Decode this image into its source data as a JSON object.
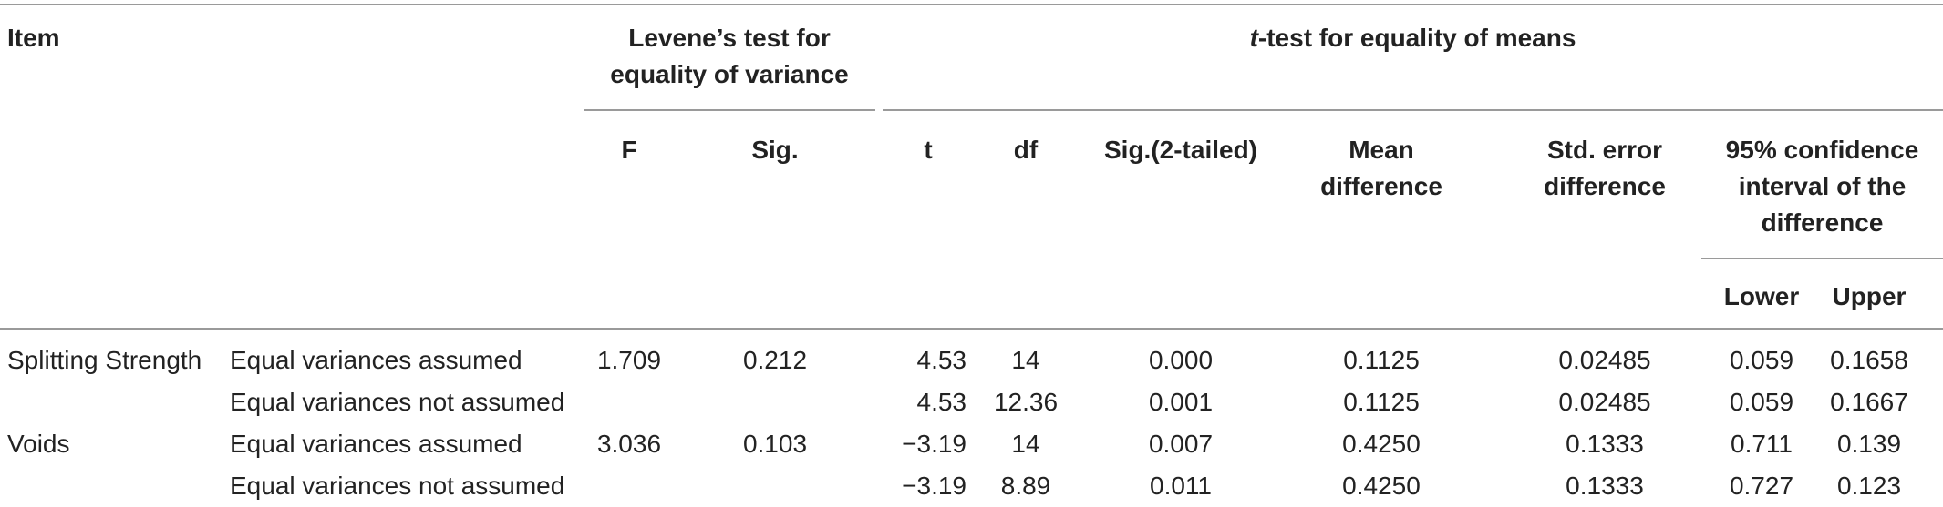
{
  "header": {
    "item": "Item",
    "levene_line1": "Levene’s test for",
    "levene_line2": "equality of variance",
    "ttest_italic": "t",
    "ttest_rest": "-test for equality of means",
    "f": "F",
    "sig": "Sig.",
    "t": "t",
    "df": "df",
    "sig2": "Sig.(2-tailed)",
    "mean_line1": "Mean",
    "mean_line2": "difference",
    "stderr_line1": "Std. error",
    "stderr_line2": "difference",
    "ci_line1": "95% confidence",
    "ci_line2": "interval of the",
    "ci_line3": "difference",
    "lower": "Lower",
    "upper": "Upper"
  },
  "rows": [
    {
      "item": "Splitting Strength",
      "assumption": "Equal variances assumed",
      "f": "1.709",
      "sig": "0.212",
      "t": "4.53",
      "df": "14",
      "sig2": "0.000",
      "mean": "0.1125",
      "stderr": "0.02485",
      "lower": "0.059",
      "upper": "0.1658"
    },
    {
      "item": "",
      "assumption": "Equal variances not assumed",
      "f": "",
      "sig": "",
      "t": "4.53",
      "df": "12.36",
      "sig2": "0.001",
      "mean": "0.1125",
      "stderr": "0.02485",
      "lower": "0.059",
      "upper": "0.1667"
    },
    {
      "item": "Voids",
      "assumption": "Equal variances assumed",
      "f": "3.036",
      "sig": "0.103",
      "t": "−3.19",
      "df": "14",
      "sig2": "0.007",
      "mean": "0.4250",
      "stderr": "0.1333",
      "lower": "0.711",
      "upper": "0.139"
    },
    {
      "item": "",
      "assumption": "Equal variances not assumed",
      "f": "",
      "sig": "",
      "t": "−3.19",
      "df": "8.89",
      "sig2": "0.011",
      "mean": "0.4250",
      "stderr": "0.1333",
      "lower": "0.727",
      "upper": "0.123"
    }
  ]
}
